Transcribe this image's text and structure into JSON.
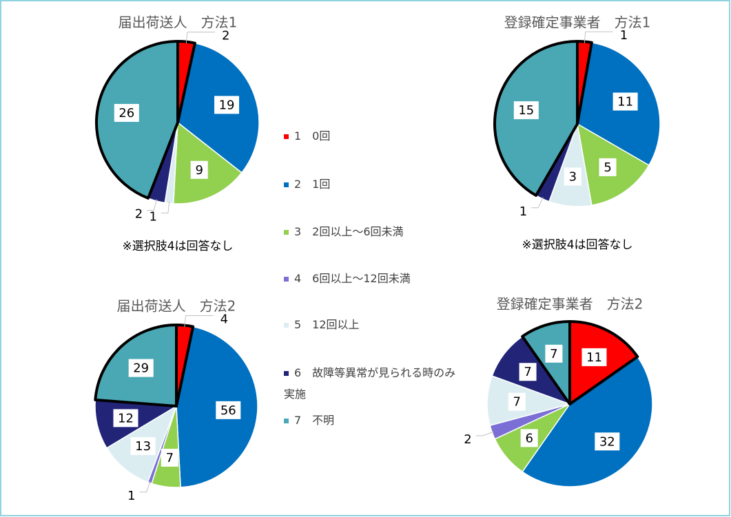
{
  "chart_data": [
    {
      "type": "pie",
      "title": "届出荷送人　方法1",
      "values": [
        2,
        19,
        9,
        null,
        1,
        2,
        26
      ],
      "highlight": [
        0,
        6
      ],
      "note": "※選択肢4は回答なし"
    },
    {
      "type": "pie",
      "title": "登録確定事業者　方法1",
      "values": [
        1,
        11,
        5,
        null,
        3,
        1,
        15
      ],
      "highlight": [
        0,
        6
      ],
      "note": "※選択肢4は回答なし"
    },
    {
      "type": "pie",
      "title": "届出荷送人　方法2",
      "values": [
        4,
        56,
        7,
        1,
        13,
        12,
        29
      ],
      "highlight": [
        0,
        6
      ]
    },
    {
      "type": "pie",
      "title": "登録確定事業者　方法2",
      "values": [
        11,
        32,
        6,
        2,
        7,
        7,
        7
      ],
      "highlight": [
        0,
        6
      ]
    }
  ],
  "legend": {
    "labels": [
      "1　0回",
      "2　1回",
      "3　2回以上～6回未満",
      "4　6回以上～12回未満",
      "5　12回以上",
      "6　故障等異常が見られる時のみ実施",
      "7　不明"
    ],
    "colors": [
      "#ff0000",
      "#0070c0",
      "#92d050",
      "#7b6fd6",
      "#dcedf2",
      "#222478",
      "#4aa8b4"
    ]
  }
}
